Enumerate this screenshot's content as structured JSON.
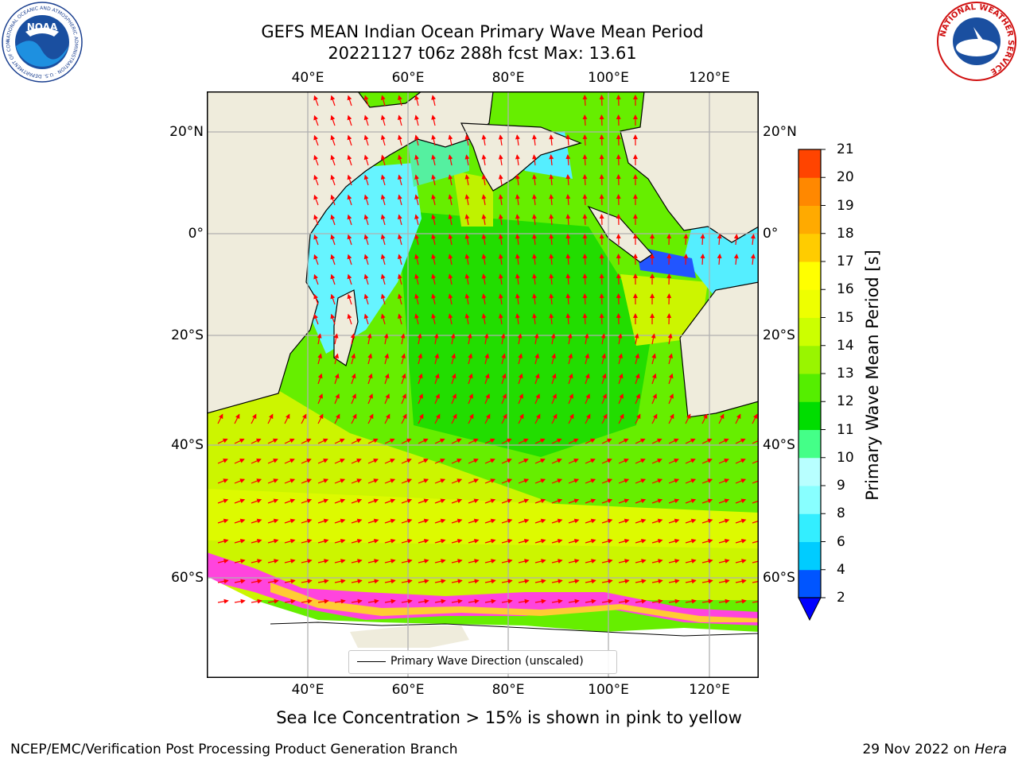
{
  "header": {
    "title_line1": "GEFS MEAN Indian Ocean Primary Wave Mean Period",
    "title_line2": "20221127 t06z 288h fcst   Max: 13.61",
    "left_logo_text": "NOAA",
    "left_logo_ring": "NATIONAL OCEANIC AND ATMOSPHERIC ADMINISTRATION · U.S. DEPARTMENT OF COMMERCE",
    "right_logo_ring": "NATIONAL WEATHER SERVICE"
  },
  "map": {
    "lon_labels": [
      "40°E",
      "60°E",
      "80°E",
      "100°E",
      "120°E"
    ],
    "lat_labels": [
      "20°N",
      "0°",
      "20°S",
      "40°S",
      "60°S"
    ],
    "legend_label": "Primary Wave Direction (unscaled)",
    "land_color": "#efecdc",
    "arrow_color": "#ff0000",
    "gridline_color": "#b0b0b0"
  },
  "colorbar": {
    "title": "Primary Wave Mean Period [s]",
    "tick_labels": [
      "2",
      "4",
      "6",
      "8",
      "9",
      "10",
      "11",
      "12",
      "13",
      "14",
      "15",
      "16",
      "17",
      "18",
      "19",
      "20",
      "21"
    ],
    "colors": [
      "#0055ff",
      "#00ccff",
      "#33eeff",
      "#88ffff",
      "#b8ffff",
      "#44ff88",
      "#00dd00",
      "#55ee00",
      "#99f500",
      "#ccff00",
      "#eeff00",
      "#ffff00",
      "#ffcc00",
      "#ffaa00",
      "#ff8800",
      "#ff4400",
      "#ff0000"
    ],
    "extend_color": "#0000ff"
  },
  "footer": {
    "note": "Sea Ice Concentration > 15% is shown in pink to yellow",
    "left": "NCEP/EMC/Verification Post Processing Product Generation Branch",
    "right_prefix": "29 Nov 2022 on ",
    "right_host": "Hera"
  }
}
